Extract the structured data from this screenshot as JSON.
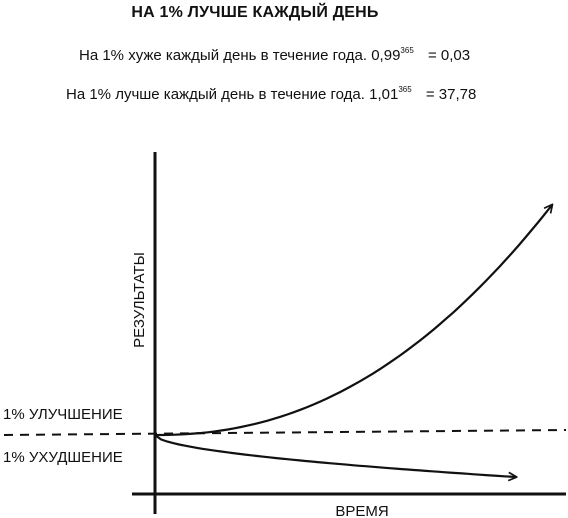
{
  "title": "НА 1% ЛУЧШЕ КАЖДЫЙ ДЕНЬ",
  "formulas": [
    {
      "text": "На 1% хуже каждый день в течение года.",
      "base": "0,99",
      "exp": "365",
      "eq": "=",
      "result": "0,03"
    },
    {
      "text": "На 1% лучше каждый день в течение года.",
      "base": "1,01",
      "exp": "365",
      "eq": "=",
      "result": "37,78"
    }
  ],
  "chart_data": {
    "type": "line",
    "xlabel": "ВРЕМЯ",
    "ylabel": "РЕЗУЛЬТАТЫ",
    "x_range": [
      0,
      365
    ],
    "baseline": 1,
    "series": [
      {
        "name": "1% УЛУЧШЕНИЕ",
        "growth": 1.01,
        "x": [
          0,
          73,
          146,
          219,
          292,
          365
        ],
        "values": [
          1,
          2.07,
          4.28,
          8.84,
          18.27,
          37.78
        ]
      },
      {
        "name": "1% УХУДШЕНИЕ",
        "growth": 0.99,
        "x": [
          0,
          73,
          146,
          219,
          292,
          365
        ],
        "values": [
          1,
          0.48,
          0.23,
          0.11,
          0.05,
          0.03
        ]
      }
    ],
    "colors": {
      "line": "#111111",
      "background": "#ffffff"
    }
  }
}
